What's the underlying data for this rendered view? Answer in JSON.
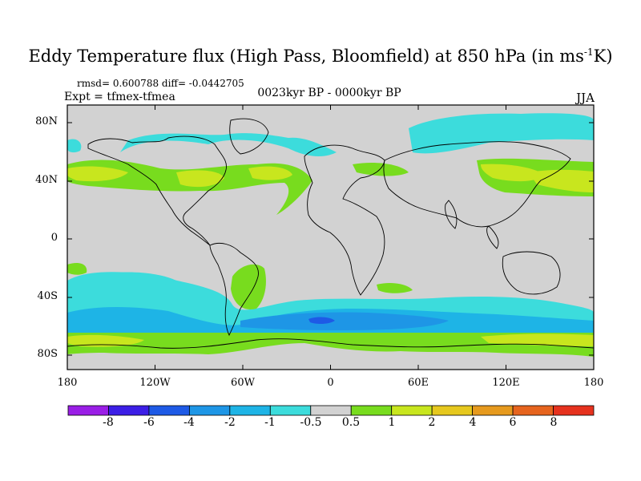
{
  "title": {
    "main": "Eddy Temperature flux (High Pass, Bloomfield) at 850 hPa (in ms",
    "sup": "-1",
    "end": "K)"
  },
  "stats": "rmsd= 0.600788 diff= -0.0442705",
  "expt": "Expt = tfmex-tfmea",
  "period": "0023kyr BP - 0000kyr BP",
  "season": "JJA",
  "lat_ticks": [
    "80N",
    "40N",
    "0",
    "40S",
    "80S"
  ],
  "lon_ticks": [
    "180",
    "120W",
    "60W",
    "0",
    "60E",
    "120E",
    "180"
  ],
  "colorbar": {
    "colors": [
      "#9a1ee6",
      "#3c1ee6",
      "#1e5ae6",
      "#1e96e6",
      "#1eb4e6",
      "#3cdcdc",
      "#d2d2d2",
      "#78dc1e",
      "#c8e61e",
      "#e6c81e",
      "#e69a1e",
      "#e6641e",
      "#e6321e"
    ],
    "labels": [
      "-8",
      "-6",
      "-4",
      "-2",
      "-1",
      "-0.5",
      "0.5",
      "1",
      "2",
      "4",
      "6",
      "8"
    ]
  },
  "map": {
    "background": "#d2d2d2",
    "coastline_color": "#000000",
    "field_regions": [
      {
        "level": "-1 to -0.5",
        "color": "#3cdcdc",
        "region": "North Atlantic / Arctic"
      },
      {
        "level": "-1 to -0.5",
        "color": "#3cdcdc",
        "region": "Arctic Siberia"
      },
      {
        "level": "-2 to -4",
        "color": "#1e96e6",
        "region": "Southern Ocean"
      },
      {
        "level": "0.5 to 1",
        "color": "#78dc1e",
        "region": "Mid-latitude storm tracks"
      },
      {
        "level": "1 to 2",
        "color": "#c8e61e",
        "region": "North Pacific"
      },
      {
        "level": "1 to 2",
        "color": "#c8e61e",
        "region": "Antarctic coast"
      }
    ]
  }
}
